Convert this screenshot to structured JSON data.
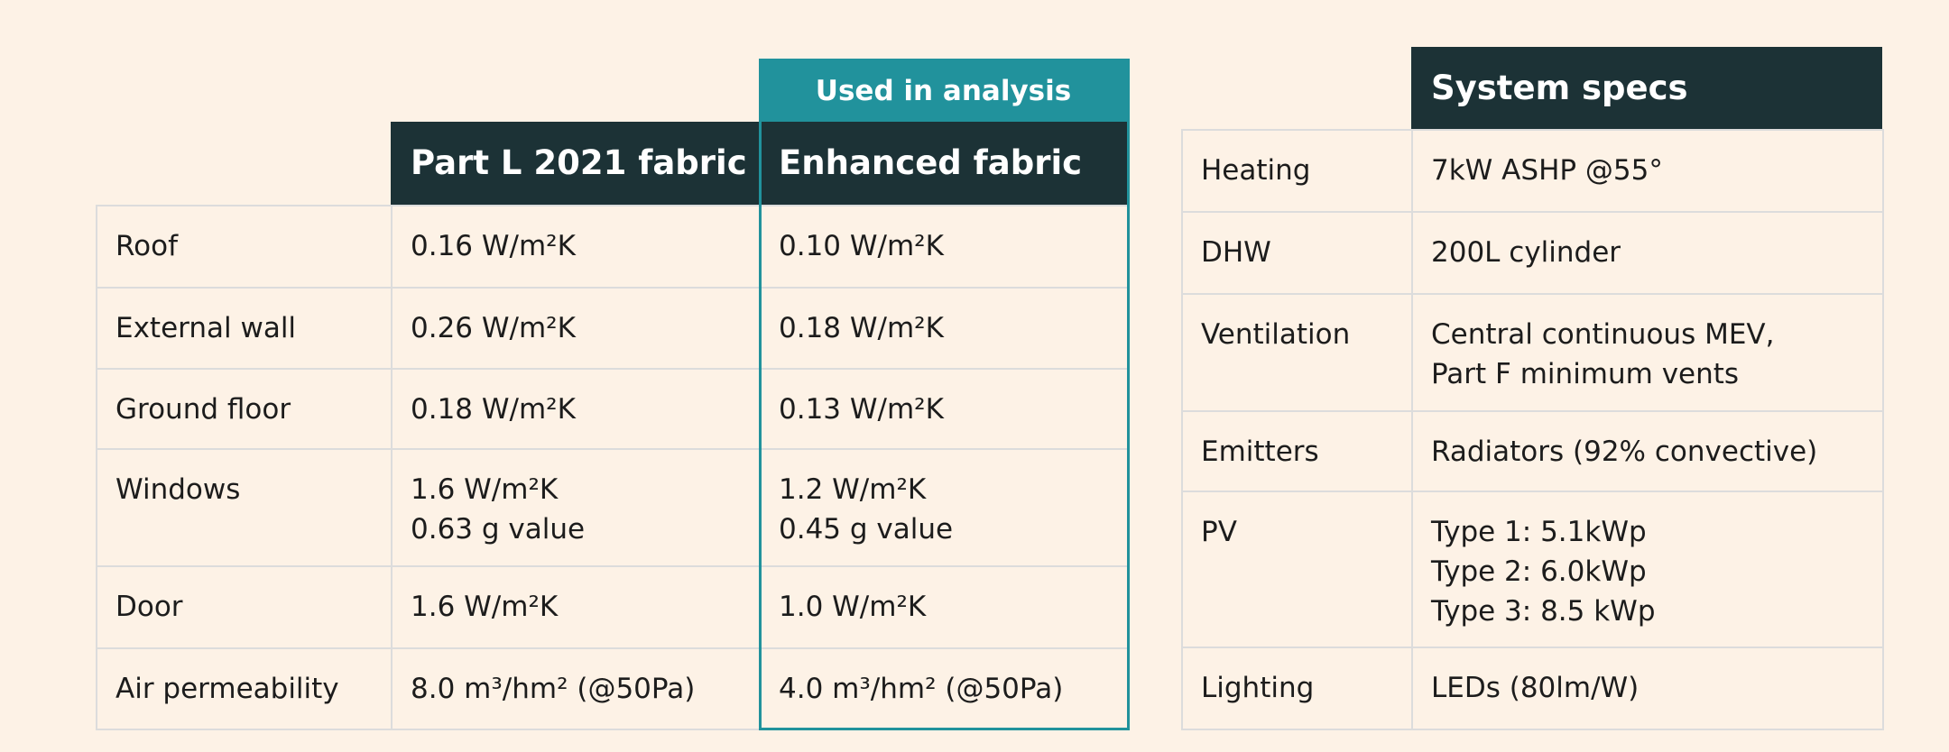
{
  "fabric_table": {
    "header_badge": "Used in analysis",
    "columns": [
      "Part L 2021 fabric",
      "Enhanced fabric"
    ],
    "rows": [
      [
        "Roof",
        [
          "0.16 W/m²K"
        ],
        [
          "0.10 W/m²K"
        ]
      ],
      [
        "External wall",
        [
          "0.26 W/m²K"
        ],
        [
          "0.18 W/m²K"
        ]
      ],
      [
        "Ground floor",
        [
          "0.18 W/m²K"
        ],
        [
          "0.13 W/m²K"
        ]
      ],
      [
        "Windows",
        [
          "1.6 W/m²K",
          "0.63 g value"
        ],
        [
          "1.2 W/m²K",
          "0.45 g value"
        ]
      ],
      [
        "Door",
        [
          "1.6 W/m²K"
        ],
        [
          "1.0 W/m²K"
        ]
      ],
      [
        "Air permeability",
        [
          "8.0 m³/hm² (@50Pa)"
        ],
        [
          "4.0 m³/hm² (@50Pa)"
        ]
      ]
    ]
  },
  "system_table": {
    "header": "System specs",
    "rows": [
      [
        "Heating",
        [
          "7kW ASHP @55°"
        ]
      ],
      [
        "DHW",
        [
          "200L cylinder"
        ]
      ],
      [
        "Ventilation",
        [
          "Central continuous MEV,",
          "Part F minimum vents"
        ]
      ],
      [
        "Emitters",
        [
          "Radiators (92% convective)"
        ]
      ],
      [
        "PV",
        [
          "Type 1: 5.1kWp",
          "Type 2: 6.0kWp",
          "Type 3: 8.5 kWp"
        ]
      ],
      [
        "Lighting",
        [
          "LEDs (80lm/W)"
        ]
      ]
    ]
  }
}
